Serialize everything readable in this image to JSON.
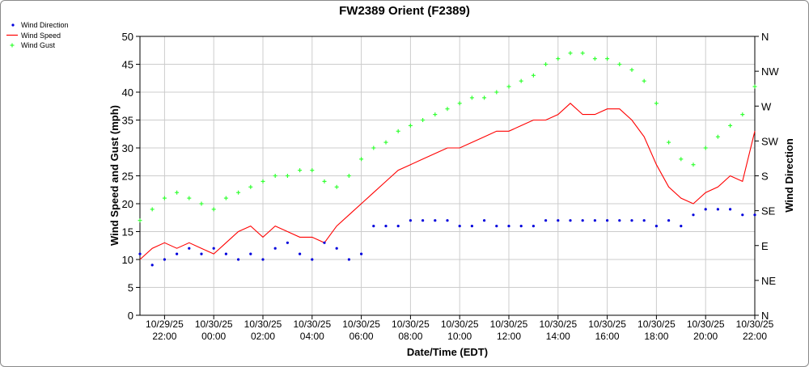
{
  "chart_data": {
    "type": "line",
    "title": "FW2389 Orient (F2389)",
    "xlabel": "Date/Time (EDT)",
    "ylabel": "Wind Speed and Gust (mph)",
    "y2label": "Wind Direction",
    "ylim": [
      0,
      50
    ],
    "yticks": [
      0,
      5,
      10,
      15,
      20,
      25,
      30,
      35,
      40,
      45,
      50
    ],
    "xlim_hours": [
      21.0,
      46.0
    ],
    "xticks": [
      {
        "hour": 22,
        "date": "10/29/25",
        "time": "22:00"
      },
      {
        "hour": 24,
        "date": "10/30/25",
        "time": "00:00"
      },
      {
        "hour": 26,
        "date": "10/30/25",
        "time": "02:00"
      },
      {
        "hour": 28,
        "date": "10/30/25",
        "time": "04:00"
      },
      {
        "hour": 30,
        "date": "10/30/25",
        "time": "06:00"
      },
      {
        "hour": 32,
        "date": "10/30/25",
        "time": "08:00"
      },
      {
        "hour": 34,
        "date": "10/30/25",
        "time": "10:00"
      },
      {
        "hour": 36,
        "date": "10/30/25",
        "time": "12:00"
      },
      {
        "hour": 38,
        "date": "10/30/25",
        "time": "14:00"
      },
      {
        "hour": 40,
        "date": "10/30/25",
        "time": "16:00"
      },
      {
        "hour": 42,
        "date": "10/30/25",
        "time": "18:00"
      },
      {
        "hour": 44,
        "date": "10/30/25",
        "time": "20:00"
      },
      {
        "hour": 46,
        "date": "10/30/25",
        "time": "22:00"
      }
    ],
    "y2ticks": [
      {
        "label": "N",
        "value": 50
      },
      {
        "label": "NW",
        "value": 43.75
      },
      {
        "label": "W",
        "value": 37.5
      },
      {
        "label": "SW",
        "value": 31.25
      },
      {
        "label": "S",
        "value": 25
      },
      {
        "label": "SE",
        "value": 18.75
      },
      {
        "label": "E",
        "value": 12.5
      },
      {
        "label": "NE",
        "value": 6.25
      },
      {
        "label": "N",
        "value": 0
      }
    ],
    "grid": true,
    "legend_position": "top-left",
    "series": [
      {
        "name": "Wind Speed",
        "style": "line",
        "color": "#ff0000",
        "x": [
          21.0,
          21.5,
          22.0,
          22.5,
          23.0,
          23.5,
          24.0,
          24.5,
          25.0,
          25.5,
          26.0,
          26.5,
          27.0,
          27.5,
          28.0,
          28.5,
          29.0,
          29.5,
          30.0,
          30.5,
          31.0,
          31.5,
          32.0,
          32.5,
          33.0,
          33.5,
          34.0,
          34.5,
          35.0,
          35.5,
          36.0,
          36.5,
          37.0,
          37.5,
          38.0,
          38.5,
          39.0,
          39.5,
          40.0,
          40.5,
          41.0,
          41.5,
          42.0,
          42.5,
          43.0,
          43.5,
          44.0,
          44.5,
          45.0,
          45.5,
          46.0
        ],
        "values": [
          10,
          12,
          13,
          12,
          13,
          12,
          11,
          13,
          15,
          16,
          14,
          16,
          15,
          14,
          14,
          13,
          16,
          18,
          20,
          22,
          24,
          26,
          27,
          28,
          29,
          30,
          30,
          31,
          32,
          33,
          33,
          34,
          35,
          35,
          36,
          38,
          36,
          36,
          37,
          37,
          35,
          32,
          27,
          23,
          21,
          20,
          22,
          23,
          25,
          24,
          33
        ]
      },
      {
        "name": "Wind Gust",
        "style": "plus",
        "color": "#33ff33",
        "x": [
          21.0,
          21.5,
          22.0,
          22.5,
          23.0,
          23.5,
          24.0,
          24.5,
          25.0,
          25.5,
          26.0,
          26.5,
          27.0,
          27.5,
          28.0,
          28.5,
          29.0,
          29.5,
          30.0,
          30.5,
          31.0,
          31.5,
          32.0,
          32.5,
          33.0,
          33.5,
          34.0,
          34.5,
          35.0,
          35.5,
          36.0,
          36.5,
          37.0,
          37.5,
          38.0,
          38.5,
          39.0,
          39.5,
          40.0,
          40.5,
          41.0,
          41.5,
          42.0,
          42.5,
          43.0,
          43.5,
          44.0,
          44.5,
          45.0,
          45.5,
          46.0
        ],
        "values": [
          17,
          19,
          21,
          22,
          21,
          20,
          19,
          21,
          22,
          23,
          24,
          25,
          25,
          26,
          26,
          24,
          23,
          25,
          28,
          30,
          31,
          33,
          34,
          35,
          36,
          37,
          38,
          39,
          39,
          40,
          41,
          42,
          43,
          45,
          46,
          47,
          47,
          46,
          46,
          45,
          44,
          42,
          38,
          31,
          28,
          27,
          30,
          32,
          34,
          36,
          41
        ]
      },
      {
        "name": "Wind Direction",
        "style": "dot",
        "color": "#0000dd",
        "axis": "right",
        "x": [
          21.0,
          21.5,
          22.0,
          22.5,
          23.0,
          23.5,
          24.0,
          24.5,
          25.0,
          25.5,
          26.0,
          26.5,
          27.0,
          27.5,
          28.0,
          28.5,
          29.0,
          29.5,
          30.0,
          30.5,
          31.0,
          31.5,
          32.0,
          32.5,
          33.0,
          33.5,
          34.0,
          34.5,
          35.0,
          35.5,
          36.0,
          36.5,
          37.0,
          37.5,
          38.0,
          38.5,
          39.0,
          39.5,
          40.0,
          40.5,
          41.0,
          41.5,
          42.0,
          42.5,
          43.0,
          43.5,
          44.0,
          44.5,
          45.0,
          45.5,
          46.0
        ],
        "values": [
          11,
          9,
          10,
          11,
          12,
          11,
          12,
          11,
          10,
          11,
          10,
          12,
          13,
          11,
          10,
          13,
          12,
          10,
          11,
          16,
          16,
          16,
          17,
          17,
          17,
          17,
          16,
          16,
          17,
          16,
          16,
          16,
          16,
          17,
          17,
          17,
          17,
          17,
          17,
          17,
          17,
          17,
          16,
          17,
          16,
          18,
          19,
          19,
          19,
          18,
          18
        ]
      }
    ]
  }
}
